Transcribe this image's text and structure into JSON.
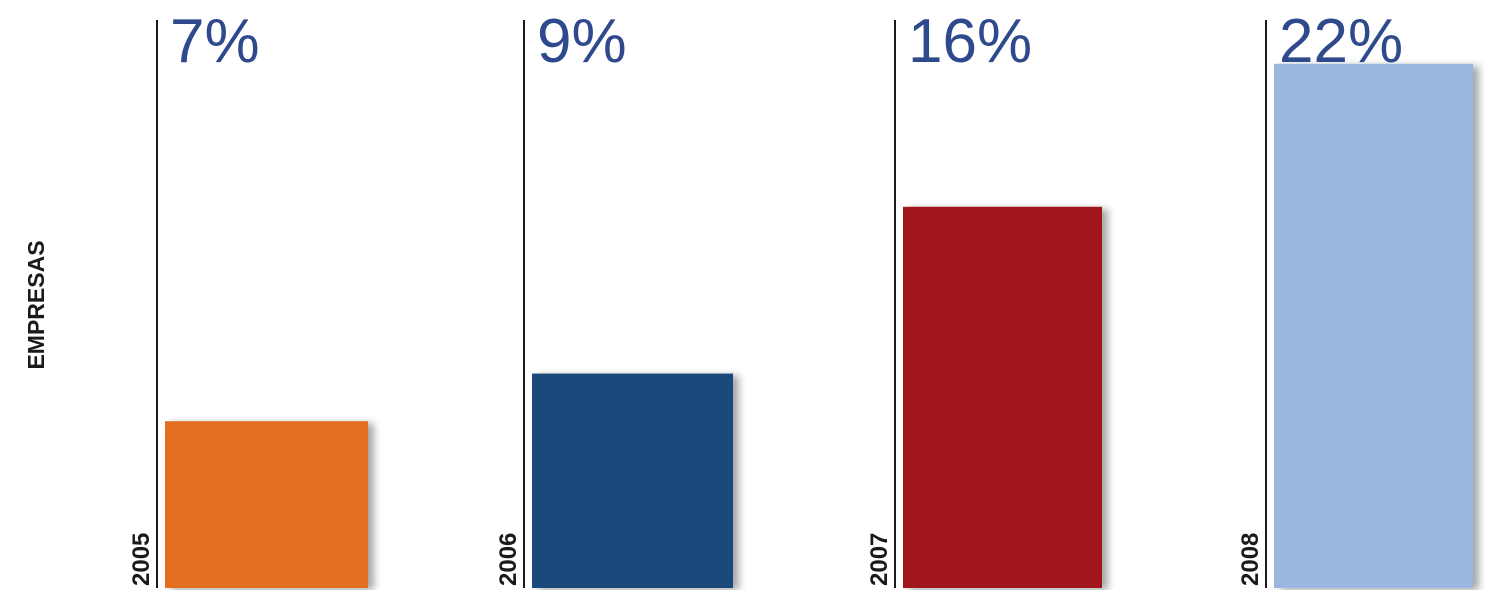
{
  "chart_data": {
    "type": "bar",
    "ylabel": "EMPRESAS",
    "categories": [
      "2005",
      "2006",
      "2007",
      "2008"
    ],
    "values": [
      7,
      9,
      16,
      22
    ],
    "value_labels": [
      "7%",
      "9%",
      "16%",
      "22%"
    ],
    "colors": [
      "#e36e24",
      "#1d4a7c",
      "#a0191e",
      "#9bb6df"
    ],
    "ylim": [
      0,
      23
    ],
    "grid": false,
    "legend": "none"
  }
}
